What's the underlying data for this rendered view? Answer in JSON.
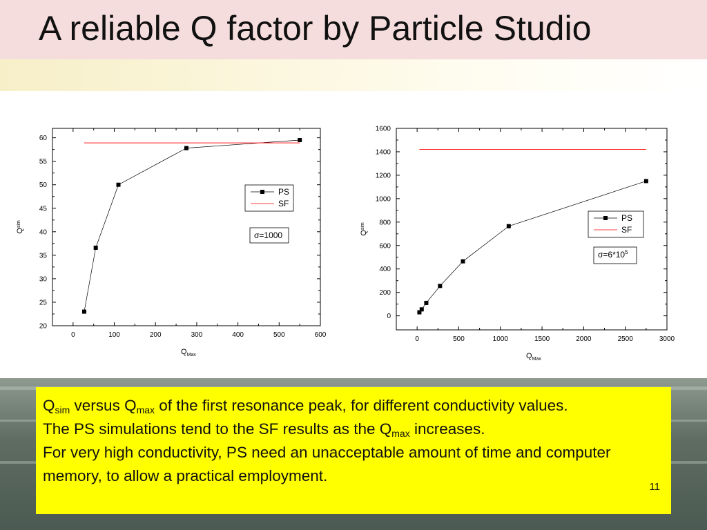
{
  "slide": {
    "title": "A reliable Q factor by Particle Studio",
    "page_number": "11"
  },
  "caption": {
    "line1": {
      "q1": "Q",
      "sub1": "sim",
      "mid": " versus Q",
      "sub2": "max",
      "rest": " of the first resonance peak, for different conductivity values."
    },
    "line2": {
      "text": "The PS simulations tend to the SF results as the Q",
      "sub": "max",
      "rest": " increases."
    },
    "line3": {
      "text": "For very high conductivity, PS need an unacceptable amount of time and computer memory, to allow a practical employment."
    }
  },
  "chart_data": [
    {
      "type": "line",
      "xlabel": "Q",
      "xlabel_sub": "Max",
      "ylabel": "Q",
      "ylabel_sub": "sim",
      "xlim": [
        -50,
        600
      ],
      "ylim": [
        20,
        62
      ],
      "xticks": [
        0,
        100,
        200,
        300,
        400,
        500,
        600
      ],
      "yticks": [
        20,
        25,
        30,
        35,
        40,
        45,
        50,
        55,
        60
      ],
      "series": [
        {
          "name": "PS",
          "color": "#000000",
          "marker": "square",
          "x": [
            27,
            55,
            110,
            275,
            550
          ],
          "y": [
            23,
            36.6,
            50,
            57.8,
            59.5
          ]
        },
        {
          "name": "SF",
          "color": "#ff0000",
          "marker": "none",
          "x": [
            27,
            550
          ],
          "y": [
            58.9,
            58.9
          ]
        }
      ],
      "legend_position": "right",
      "annotation": "σ=1000"
    },
    {
      "type": "line",
      "xlabel": "Q",
      "xlabel_sub": "Max",
      "ylabel": "Q",
      "ylabel_sub": "sim",
      "xlim": [
        -250,
        3000
      ],
      "ylim": [
        -120,
        1600
      ],
      "xticks": [
        0,
        500,
        1000,
        1500,
        2000,
        2500,
        3000
      ],
      "yticks": [
        0,
        200,
        400,
        600,
        800,
        1000,
        1200,
        1400,
        1600
      ],
      "series": [
        {
          "name": "PS",
          "color": "#000000",
          "marker": "square",
          "x": [
            27,
            55,
            110,
            275,
            550,
            1100,
            2750
          ],
          "y": [
            30,
            55,
            110,
            255,
            465,
            765,
            1150
          ]
        },
        {
          "name": "SF",
          "color": "#ff0000",
          "marker": "none",
          "x": [
            27,
            2750
          ],
          "y": [
            1420,
            1420
          ]
        }
      ],
      "legend_position": "right",
      "annotation": "σ=6*10",
      "annotation_sup": "5"
    }
  ]
}
